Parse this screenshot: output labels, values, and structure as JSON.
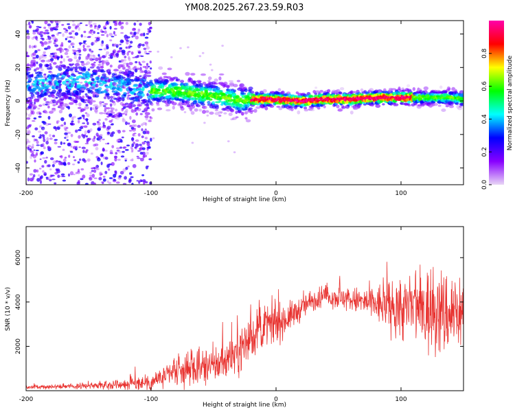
{
  "title": "YM08.2025.267.23.59.R03",
  "chart_data": [
    {
      "type": "heatmap",
      "title": "YM08.2025.267.23.59.R03",
      "xlabel": "Height of straight line (km)",
      "ylabel": "Frequency (Hz)",
      "xlim": [
        -200,
        150
      ],
      "ylim": [
        -50,
        48
      ],
      "x_ticks": [
        -200,
        -100,
        0,
        100
      ],
      "x_tick_labels": [
        "-200",
        "-100",
        "0",
        "100"
      ],
      "y_ticks": [
        -40,
        -20,
        0,
        20,
        40
      ],
      "y_tick_labels": [
        "-40",
        "-20",
        "0",
        "20",
        "40"
      ],
      "colorbar": {
        "label": "Normalized spectral amplitude",
        "range": [
          0,
          1
        ],
        "ticks": [
          0.0,
          0.2,
          0.4,
          0.6,
          0.8
        ],
        "tick_labels": [
          "0.0",
          "0.2",
          "0.4",
          "0.6",
          "0.8"
        ],
        "colors": [
          "#e8d6f5",
          "#8800ff",
          "#0000ff",
          "#00ffff",
          "#00ff00",
          "#ffff00",
          "#ff0000",
          "#ff00aa"
        ]
      },
      "ridge": {
        "x": [
          -200,
          -150,
          -140,
          -120,
          -100,
          -80,
          -60,
          -40,
          -30,
          -20,
          0,
          20,
          40,
          60,
          80,
          100,
          120,
          140,
          150
        ],
        "freq": [
          10,
          12,
          10,
          8,
          6,
          6,
          4,
          2,
          0,
          1,
          1,
          0,
          1,
          1,
          2,
          2,
          2,
          2,
          1
        ]
      }
    },
    {
      "type": "line",
      "xlabel": "Height of straight line (km)",
      "ylabel": "SNR (10 * v/v)",
      "xlim": [
        -200,
        150
      ],
      "ylim": [
        0,
        7400
      ],
      "x_ticks": [
        -200,
        -100,
        0,
        100
      ],
      "x_tick_labels": [
        "-200",
        "-100",
        "0",
        "100"
      ],
      "y_ticks": [
        2000,
        4000,
        6000
      ],
      "y_tick_labels": [
        "2000",
        "4000",
        "6000"
      ],
      "series": [
        {
          "name": "SNR",
          "color": "#e8322f",
          "x": [
            -200,
            -180,
            -160,
            -140,
            -120,
            -100,
            -90,
            -80,
            -70,
            -60,
            -50,
            -40,
            -30,
            -20,
            -10,
            0,
            10,
            20,
            30,
            40,
            50,
            60,
            70,
            80,
            90,
            100,
            110,
            120,
            130,
            140,
            150
          ],
          "values": [
            150,
            180,
            200,
            250,
            300,
            400,
            600,
            800,
            900,
            1000,
            1100,
            1400,
            1800,
            2400,
            2900,
            3000,
            3300,
            3700,
            4100,
            4300,
            4200,
            4100,
            4000,
            3900,
            3800,
            3700,
            3700,
            3600,
            3500,
            3500,
            3600
          ],
          "spread": [
            80,
            80,
            100,
            150,
            250,
            400,
            500,
            600,
            700,
            700,
            800,
            800,
            900,
            900,
            900,
            800,
            600,
            500,
            500,
            400,
            500,
            500,
            600,
            800,
            1000,
            1300,
            1600,
            1800,
            1800,
            1800,
            1600
          ]
        }
      ]
    }
  ]
}
